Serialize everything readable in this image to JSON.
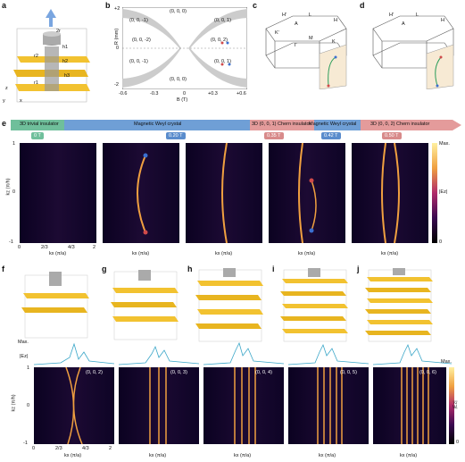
{
  "panels": {
    "a": "a",
    "b": "b",
    "c": "c",
    "d": "d",
    "e": "e",
    "f": "f",
    "g": "g",
    "h": "h",
    "i": "i",
    "j": "j"
  },
  "panel_a": {
    "field": "B",
    "labels": [
      "2r",
      "h1",
      "h2",
      "h3",
      "r2",
      "r1",
      "f1",
      "f2"
    ],
    "axes": {
      "z": "z",
      "y": "y",
      "x": "x"
    }
  },
  "panel_b": {
    "ylabel": "R (mm)",
    "xlabel": "B (T)",
    "yticks": [
      "+2",
      "0",
      "-2"
    ],
    "xticks": [
      "-0.6",
      "-0.3",
      "0",
      "+0.3",
      "+0.6"
    ],
    "region_labels": [
      "(0, 0, -1)",
      "(0, 0, 0)",
      "(0, 0, 1)",
      "(0, 0, -2)",
      "(0, 0, 2)",
      "(0, 0, -1)",
      "(0, 0, 0)",
      "(0, 0, 1)"
    ]
  },
  "panel_c": {
    "points": [
      "H'",
      "A",
      "L",
      "H",
      "K'",
      "Γ",
      "M",
      "K",
      "H̄",
      "Γ̄"
    ]
  },
  "panel_d": {
    "points": [
      "H'",
      "A",
      "L",
      "H",
      "K'",
      "Γ",
      "M",
      "K",
      "H̄",
      "Γ̄"
    ]
  },
  "phase_bar": {
    "segments": [
      "3D trivial insulator",
      "Magnetic Weyl crystal",
      "3D (0, 0, 1) Chern insulator",
      "Magnetic Weyl crystal",
      "3D (0, 0, 2) Chern insulator"
    ],
    "fields": [
      "0 T",
      "0.20 T",
      "0.35 T",
      "0.42 T",
      "0.50 T"
    ],
    "colors": {
      "trivial": "#6fbf9b",
      "weyl": "#6f9fd6",
      "chern": "#e49b9b"
    }
  },
  "panel_e": {
    "ylabel": "kz (π/h)",
    "xlabel": "kx (π/a)",
    "yticks": [
      "1",
      "0",
      "-1"
    ],
    "xticks": [
      "0",
      "2/3",
      "4/3",
      "2"
    ],
    "colorbar": {
      "max": "Max.",
      "min": "0",
      "label": "|Ez|"
    }
  },
  "panels_fj": {
    "orders": [
      "(0, 0, 2)",
      "(0, 0, 3)",
      "(0, 0, 4)",
      "(0, 0, 5)",
      "(0, 0, 6)"
    ],
    "profile_label": "|Ez|",
    "profile_max": "Max.",
    "ylabel": "kz (π/h)",
    "xlabel": "kx (π/a)",
    "yticks": [
      "1",
      "0",
      "-1"
    ],
    "xticks": [
      "0",
      "2/3",
      "4/3",
      "2"
    ],
    "colorbar": {
      "max": "Max.",
      "min": "0",
      "label": "|Ez|"
    }
  }
}
